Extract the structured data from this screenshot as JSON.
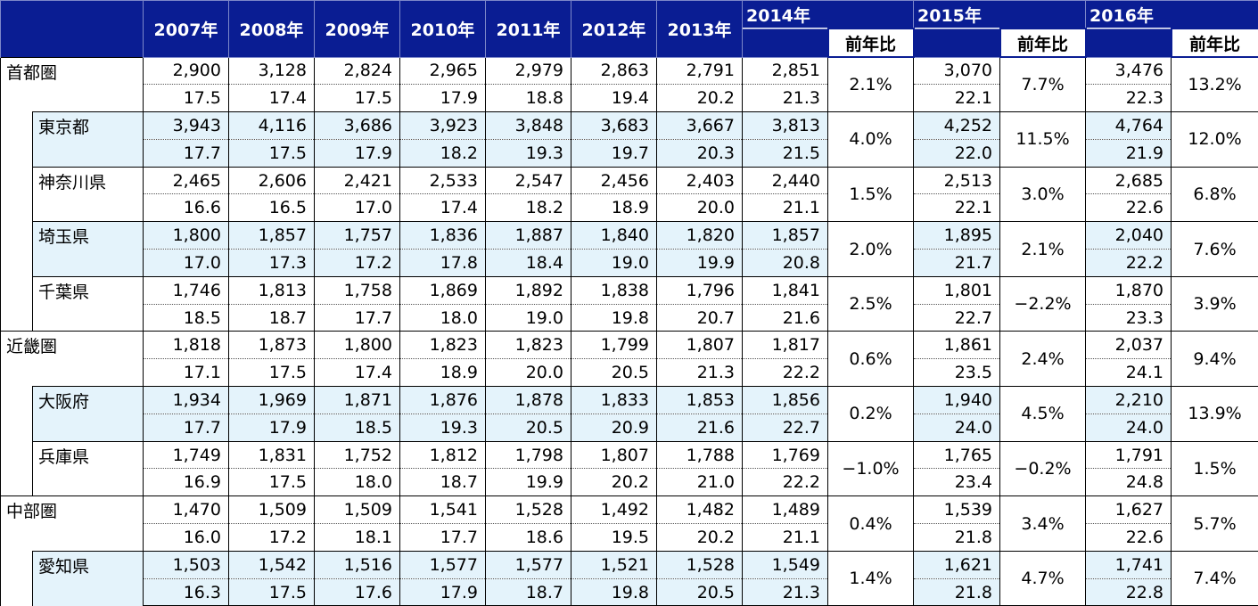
{
  "header": {
    "years": [
      "2007年",
      "2008年",
      "2009年",
      "2010年",
      "2011年",
      "2012年",
      "2013年",
      "2014年",
      "2015年",
      "2016年"
    ],
    "yoy_label": "前年比"
  },
  "rows": [
    {
      "name": "首都圏",
      "level": 0,
      "values": [
        "2,900",
        "3,128",
        "2,824",
        "2,965",
        "2,979",
        "2,863",
        "2,791",
        "2,851",
        "3,070",
        "3,476"
      ],
      "ages": [
        "17.5",
        "17.4",
        "17.5",
        "17.9",
        "18.8",
        "19.4",
        "20.2",
        "21.3",
        "22.1",
        "22.3"
      ],
      "yoy": [
        "2.1%",
        "7.7%",
        "13.2%"
      ]
    },
    {
      "name": "東京都",
      "level": 1,
      "values": [
        "3,943",
        "4,116",
        "3,686",
        "3,923",
        "3,848",
        "3,683",
        "3,667",
        "3,813",
        "4,252",
        "4,764"
      ],
      "ages": [
        "17.7",
        "17.5",
        "17.9",
        "18.2",
        "19.3",
        "19.7",
        "20.3",
        "21.5",
        "22.0",
        "21.9"
      ],
      "yoy": [
        "4.0%",
        "11.5%",
        "12.0%"
      ]
    },
    {
      "name": "神奈川県",
      "level": 1,
      "values": [
        "2,465",
        "2,606",
        "2,421",
        "2,533",
        "2,547",
        "2,456",
        "2,403",
        "2,440",
        "2,513",
        "2,685"
      ],
      "ages": [
        "16.6",
        "16.5",
        "17.0",
        "17.4",
        "18.2",
        "18.9",
        "20.0",
        "21.1",
        "22.1",
        "22.6"
      ],
      "yoy": [
        "1.5%",
        "3.0%",
        "6.8%"
      ]
    },
    {
      "name": "埼玉県",
      "level": 1,
      "values": [
        "1,800",
        "1,857",
        "1,757",
        "1,836",
        "1,887",
        "1,840",
        "1,820",
        "1,857",
        "1,895",
        "2,040"
      ],
      "ages": [
        "17.0",
        "17.3",
        "17.2",
        "17.8",
        "18.4",
        "19.0",
        "19.9",
        "20.8",
        "21.7",
        "22.2"
      ],
      "yoy": [
        "2.0%",
        "2.1%",
        "7.6%"
      ]
    },
    {
      "name": "千葉県",
      "level": 1,
      "values": [
        "1,746",
        "1,813",
        "1,758",
        "1,869",
        "1,892",
        "1,838",
        "1,796",
        "1,841",
        "1,801",
        "1,870"
      ],
      "ages": [
        "18.5",
        "18.7",
        "17.7",
        "18.0",
        "19.0",
        "19.8",
        "20.7",
        "21.6",
        "22.7",
        "23.3"
      ],
      "yoy": [
        "2.5%",
        "−2.2%",
        "3.9%"
      ]
    },
    {
      "name": "近畿圏",
      "level": 0,
      "values": [
        "1,818",
        "1,873",
        "1,800",
        "1,823",
        "1,823",
        "1,799",
        "1,807",
        "1,817",
        "1,861",
        "2,037"
      ],
      "ages": [
        "17.1",
        "17.5",
        "17.4",
        "18.9",
        "20.0",
        "20.5",
        "21.3",
        "22.2",
        "23.5",
        "24.1"
      ],
      "yoy": [
        "0.6%",
        "2.4%",
        "9.4%"
      ]
    },
    {
      "name": "大阪府",
      "level": 1,
      "values": [
        "1,934",
        "1,969",
        "1,871",
        "1,876",
        "1,878",
        "1,833",
        "1,853",
        "1,856",
        "1,940",
        "2,210"
      ],
      "ages": [
        "17.7",
        "17.9",
        "18.5",
        "19.3",
        "20.5",
        "20.9",
        "21.6",
        "22.7",
        "24.0",
        "24.0"
      ],
      "yoy": [
        "0.2%",
        "4.5%",
        "13.9%"
      ]
    },
    {
      "name": "兵庫県",
      "level": 1,
      "values": [
        "1,749",
        "1,831",
        "1,752",
        "1,812",
        "1,798",
        "1,807",
        "1,788",
        "1,769",
        "1,765",
        "1,791"
      ],
      "ages": [
        "16.9",
        "17.5",
        "18.0",
        "18.7",
        "19.9",
        "20.2",
        "21.0",
        "22.2",
        "23.4",
        "24.8"
      ],
      "yoy": [
        "−1.0%",
        "−0.2%",
        "1.5%"
      ]
    },
    {
      "name": "中部圏",
      "level": 0,
      "values": [
        "1,470",
        "1,509",
        "1,509",
        "1,541",
        "1,528",
        "1,492",
        "1,482",
        "1,489",
        "1,539",
        "1,627"
      ],
      "ages": [
        "16.0",
        "17.2",
        "18.1",
        "17.7",
        "18.6",
        "19.5",
        "20.2",
        "21.1",
        "21.8",
        "22.6"
      ],
      "yoy": [
        "0.4%",
        "3.4%",
        "5.7%"
      ]
    },
    {
      "name": "愛知県",
      "level": 1,
      "values": [
        "1,503",
        "1,542",
        "1,516",
        "1,577",
        "1,577",
        "1,521",
        "1,528",
        "1,549",
        "1,621",
        "1,741"
      ],
      "ages": [
        "16.3",
        "17.5",
        "17.6",
        "17.9",
        "18.7",
        "19.8",
        "20.5",
        "21.3",
        "21.8",
        "22.8"
      ],
      "yoy": [
        "1.4%",
        "4.7%",
        "7.4%"
      ]
    }
  ]
}
